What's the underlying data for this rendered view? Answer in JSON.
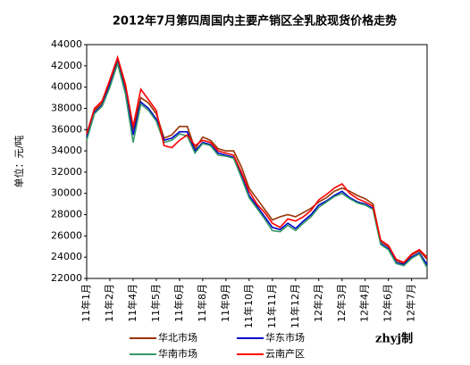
{
  "chart_data": {
    "type": "line",
    "title": "2012年7月第四周国内主要产销区全乳胶现货价格走势",
    "y_label": "单位：元/吨",
    "annotation": "zhyj制",
    "categories": [
      "11年1月",
      null,
      null,
      "11年2月",
      null,
      null,
      "11年4月",
      null,
      null,
      "11年5月",
      null,
      null,
      "11年6月",
      null,
      null,
      "11年8月",
      null,
      null,
      "11年9月",
      null,
      null,
      "11年10月",
      null,
      null,
      "11年11月",
      null,
      null,
      "11年12月",
      null,
      null,
      "12年2月",
      null,
      null,
      "12年3月",
      null,
      null,
      "12年4月",
      null,
      null,
      "12年6月",
      null,
      null,
      "12年7月",
      null,
      null
    ],
    "series": [
      {
        "name": "华北市场",
        "color": "#993300",
        "values": [
          35500,
          37800,
          38500,
          40500,
          42500,
          40000,
          36000,
          39000,
          38500,
          37500,
          35200,
          35500,
          36300,
          36300,
          34200,
          35300,
          35000,
          34200,
          34000,
          34000,
          32500,
          30500,
          29500,
          28500,
          27500,
          27800,
          28000,
          27800,
          28200,
          28600,
          29200,
          29600,
          30200,
          30500,
          30200,
          29800,
          29500,
          29000,
          25500,
          25000,
          23700,
          23400,
          24200,
          24600,
          23800
        ]
      },
      {
        "name": "华东市场",
        "color": "#0000cc",
        "values": [
          35300,
          37600,
          38300,
          40200,
          42300,
          39600,
          35500,
          38600,
          38000,
          37000,
          35000,
          35200,
          35800,
          35800,
          34000,
          34800,
          34600,
          33800,
          33600,
          33400,
          31800,
          29800,
          28800,
          27800,
          26800,
          26600,
          27200,
          26700,
          27400,
          28000,
          28900,
          29300,
          29800,
          30200,
          29600,
          29200,
          29000,
          28600,
          25300,
          24800,
          23500,
          23300,
          24000,
          24400,
          23300
        ]
      },
      {
        "name": "华南市场",
        "color": "#339966",
        "values": [
          35000,
          37500,
          38200,
          40000,
          42200,
          39400,
          34800,
          38400,
          37800,
          36800,
          34800,
          35000,
          35600,
          35400,
          33800,
          34700,
          34500,
          33600,
          33500,
          33300,
          31500,
          29600,
          28600,
          27600,
          26500,
          26400,
          27000,
          26500,
          27200,
          27800,
          28700,
          29200,
          29700,
          30000,
          29500,
          29100,
          28900,
          28500,
          25200,
          24700,
          23400,
          23200,
          23900,
          24300,
          23000
        ]
      },
      {
        "name": "云南产区",
        "color": "#ff0000",
        "values": [
          35600,
          38000,
          38700,
          40700,
          42800,
          40300,
          36300,
          39800,
          38800,
          37800,
          34500,
          34300,
          35000,
          35500,
          34500,
          35000,
          34800,
          34000,
          33800,
          33600,
          32000,
          30200,
          29000,
          28200,
          27200,
          26800,
          27600,
          27400,
          27800,
          28400,
          29400,
          29900,
          30500,
          30900,
          30000,
          29500,
          29200,
          28800,
          25600,
          25100,
          23800,
          23500,
          24300,
          24700,
          24000
        ]
      }
    ],
    "ylim": [
      22000,
      44000
    ],
    "yticks": [
      22000,
      24000,
      26000,
      28000,
      30000,
      32000,
      34000,
      36000,
      38000,
      40000,
      42000,
      44000
    ],
    "grid": false
  }
}
